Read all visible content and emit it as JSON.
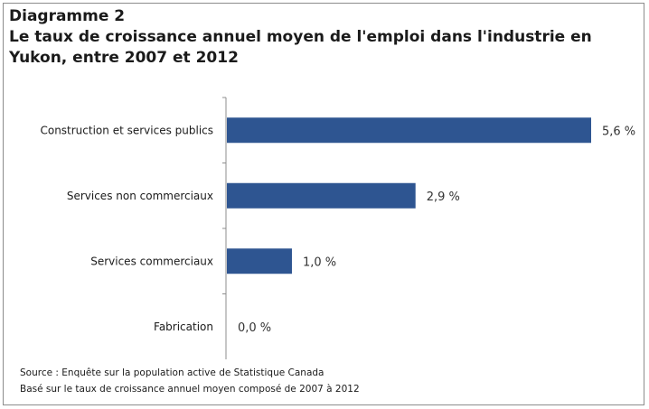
{
  "figure": {
    "label": "Diagramme 2",
    "title": "Le taux de croissance annuel moyen de l'emploi dans l'industrie en Yukon, entre 2007 et 2012"
  },
  "chart_data": {
    "type": "bar",
    "orientation": "horizontal",
    "title": "Le taux de croissance annuel moyen de l'emploi dans l'industrie en Yukon, entre 2007 et 2012",
    "categories": [
      "Construction et services publics",
      "Services non commerciaux",
      "Services commerciaux",
      "Fabrication"
    ],
    "values": [
      5.6,
      2.9,
      1.0,
      0.0
    ],
    "value_labels": [
      "5,6 %",
      "2,9 %",
      "1,0 %",
      "0,0 %"
    ],
    "xlim": [
      0,
      5.6
    ],
    "grid": false,
    "legend": "none",
    "bar_color": "#2e5591"
  },
  "notes": {
    "source": "Source : Enquête sur la population active de Statistique  Canada",
    "basis": "Basé sur le taux de croissance annuel moyen composé de 2007 à 2012"
  }
}
